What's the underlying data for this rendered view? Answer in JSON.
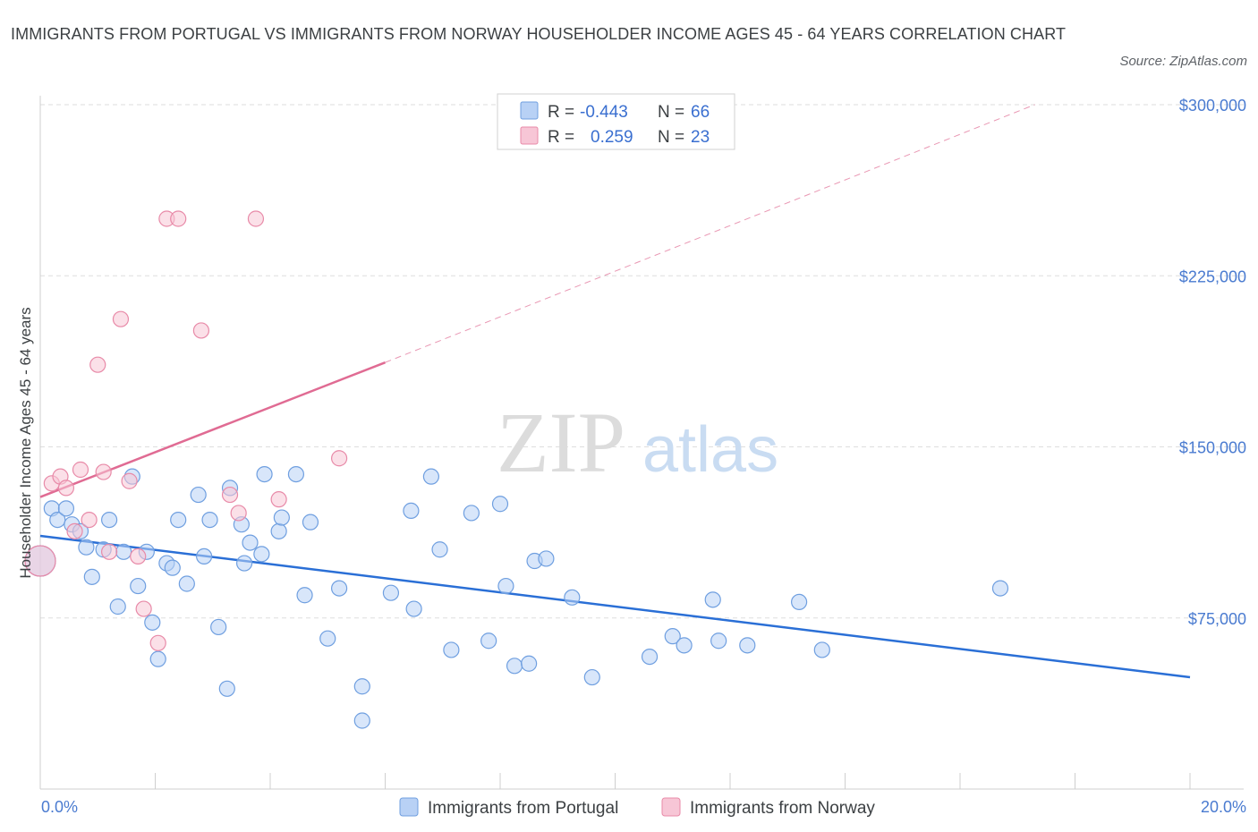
{
  "title": "IMMIGRANTS FROM PORTUGAL VS IMMIGRANTS FROM NORWAY HOUSEHOLDER INCOME AGES 45 - 64 YEARS CORRELATION CHART",
  "source": "Source: ZipAtlas.com",
  "watermark": {
    "zip": "ZIP",
    "atlas": "atlas"
  },
  "colors": {
    "portugal_fill": "#b8d1f5",
    "portugal_stroke": "#6f9fe0",
    "portugal_line": "#2a6fd6",
    "norway_fill": "#f7c6d6",
    "norway_stroke": "#e88aa8",
    "norway_line": "#e06b93",
    "tick_label": "#4a7bd0"
  },
  "stats_legend": [
    {
      "r_label": "R =",
      "r_value": "-0.443",
      "n_label": "N =",
      "n_value": "66"
    },
    {
      "r_label": "R =",
      "r_value": "0.259",
      "n_label": "N =",
      "n_value": "23"
    }
  ],
  "chart_data": {
    "type": "scatter",
    "title": "IMMIGRANTS FROM PORTUGAL VS IMMIGRANTS FROM NORWAY HOUSEHOLDER INCOME AGES 45 - 64 YEARS CORRELATION CHART",
    "xlabel": "",
    "ylabel": "Householder Income Ages 45 - 64 years",
    "xlim": [
      0,
      20
    ],
    "ylim": [
      0,
      300000
    ],
    "x_tick_labels": [
      "0.0%",
      "20.0%"
    ],
    "y_ticks": [
      75000,
      150000,
      225000,
      300000
    ],
    "y_tick_labels": [
      "$75,000",
      "$150,000",
      "$225,000",
      "$300,000"
    ],
    "grid": "horizontal dashed",
    "legend_position": "bottom",
    "series": [
      {
        "name": "Immigrants from Portugal",
        "r": -0.443,
        "n": 66,
        "trend": {
          "x": [
            0,
            20
          ],
          "y": [
            111000,
            49000
          ],
          "dashed_from": null
        },
        "points": [
          {
            "x": 0.0,
            "y": 100000,
            "big": true
          },
          {
            "x": 0.2,
            "y": 123000
          },
          {
            "x": 0.3,
            "y": 118000
          },
          {
            "x": 0.45,
            "y": 123000
          },
          {
            "x": 0.55,
            "y": 116000
          },
          {
            "x": 0.7,
            "y": 113000
          },
          {
            "x": 0.8,
            "y": 106000
          },
          {
            "x": 0.9,
            "y": 93000
          },
          {
            "x": 1.1,
            "y": 105000
          },
          {
            "x": 1.2,
            "y": 118000
          },
          {
            "x": 1.35,
            "y": 80000
          },
          {
            "x": 1.45,
            "y": 104000
          },
          {
            "x": 1.6,
            "y": 137000
          },
          {
            "x": 1.7,
            "y": 89000
          },
          {
            "x": 1.85,
            "y": 104000
          },
          {
            "x": 1.95,
            "y": 73000
          },
          {
            "x": 2.05,
            "y": 57000
          },
          {
            "x": 2.2,
            "y": 99000
          },
          {
            "x": 2.3,
            "y": 97000
          },
          {
            "x": 2.4,
            "y": 118000
          },
          {
            "x": 2.55,
            "y": 90000
          },
          {
            "x": 2.75,
            "y": 129000
          },
          {
            "x": 2.85,
            "y": 102000
          },
          {
            "x": 2.95,
            "y": 118000
          },
          {
            "x": 3.1,
            "y": 71000
          },
          {
            "x": 3.25,
            "y": 44000
          },
          {
            "x": 3.3,
            "y": 132000
          },
          {
            "x": 3.5,
            "y": 116000
          },
          {
            "x": 3.55,
            "y": 99000
          },
          {
            "x": 3.65,
            "y": 108000
          },
          {
            "x": 3.85,
            "y": 103000
          },
          {
            "x": 3.9,
            "y": 138000
          },
          {
            "x": 4.15,
            "y": 113000
          },
          {
            "x": 4.2,
            "y": 119000
          },
          {
            "x": 4.45,
            "y": 138000
          },
          {
            "x": 4.6,
            "y": 85000
          },
          {
            "x": 4.7,
            "y": 117000
          },
          {
            "x": 5.0,
            "y": 66000
          },
          {
            "x": 5.2,
            "y": 88000
          },
          {
            "x": 5.6,
            "y": 45000
          },
          {
            "x": 5.6,
            "y": 30000
          },
          {
            "x": 6.1,
            "y": 86000
          },
          {
            "x": 6.45,
            "y": 122000
          },
          {
            "x": 6.5,
            "y": 79000
          },
          {
            "x": 6.8,
            "y": 137000
          },
          {
            "x": 6.95,
            "y": 105000
          },
          {
            "x": 7.15,
            "y": 61000
          },
          {
            "x": 7.5,
            "y": 121000
          },
          {
            "x": 7.8,
            "y": 65000
          },
          {
            "x": 8.0,
            "y": 125000
          },
          {
            "x": 8.1,
            "y": 89000
          },
          {
            "x": 8.25,
            "y": 54000
          },
          {
            "x": 8.5,
            "y": 55000
          },
          {
            "x": 8.6,
            "y": 100000
          },
          {
            "x": 8.8,
            "y": 101000
          },
          {
            "x": 9.25,
            "y": 84000
          },
          {
            "x": 9.6,
            "y": 49000
          },
          {
            "x": 10.6,
            "y": 58000
          },
          {
            "x": 11.0,
            "y": 67000
          },
          {
            "x": 11.2,
            "y": 63000
          },
          {
            "x": 11.7,
            "y": 83000
          },
          {
            "x": 11.8,
            "y": 65000
          },
          {
            "x": 12.3,
            "y": 63000
          },
          {
            "x": 13.2,
            "y": 82000
          },
          {
            "x": 13.6,
            "y": 61000
          },
          {
            "x": 16.7,
            "y": 88000
          }
        ]
      },
      {
        "name": "Immigrants from Norway",
        "r": 0.259,
        "n": 23,
        "trend": {
          "x": [
            0,
            6,
            17.3
          ],
          "y": [
            128000,
            187000,
            300000
          ],
          "dashed_from": 6
        },
        "points": [
          {
            "x": 0.0,
            "y": 100000,
            "big": true
          },
          {
            "x": 0.2,
            "y": 134000
          },
          {
            "x": 0.35,
            "y": 137000
          },
          {
            "x": 0.45,
            "y": 132000
          },
          {
            "x": 0.6,
            "y": 113000
          },
          {
            "x": 0.7,
            "y": 140000
          },
          {
            "x": 0.85,
            "y": 118000
          },
          {
            "x": 1.0,
            "y": 186000
          },
          {
            "x": 1.1,
            "y": 139000
          },
          {
            "x": 1.2,
            "y": 104000
          },
          {
            "x": 1.4,
            "y": 206000
          },
          {
            "x": 1.55,
            "y": 135000
          },
          {
            "x": 1.7,
            "y": 102000
          },
          {
            "x": 1.8,
            "y": 79000
          },
          {
            "x": 2.05,
            "y": 64000
          },
          {
            "x": 2.2,
            "y": 250000
          },
          {
            "x": 2.4,
            "y": 250000
          },
          {
            "x": 2.8,
            "y": 201000
          },
          {
            "x": 3.3,
            "y": 129000
          },
          {
            "x": 3.45,
            "y": 121000
          },
          {
            "x": 3.75,
            "y": 250000
          },
          {
            "x": 4.15,
            "y": 127000
          },
          {
            "x": 5.2,
            "y": 145000
          }
        ]
      }
    ]
  }
}
